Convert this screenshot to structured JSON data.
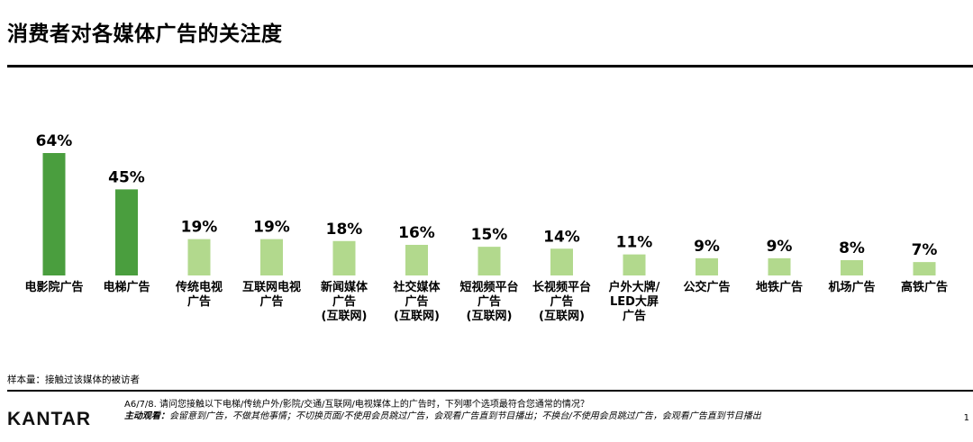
{
  "title": "消费者对各媒体广告的关注度",
  "colors": {
    "highlight": "#4a9e3e",
    "normal": "#b2d98d"
  },
  "chart_data": {
    "type": "bar",
    "categories": [
      [
        "电影院广告"
      ],
      [
        "电梯广告"
      ],
      [
        "传统电视",
        "广告"
      ],
      [
        "互联网电视",
        "广告"
      ],
      [
        "新闻媒体",
        "广告",
        "(互联网)"
      ],
      [
        "社交媒体",
        "广告",
        "(互联网)"
      ],
      [
        "短视频平台",
        "广告",
        "(互联网)"
      ],
      [
        "长视频平台",
        "广告",
        "(互联网)"
      ],
      [
        "户外大牌/",
        "LED大屏",
        "广告"
      ],
      [
        "公交广告"
      ],
      [
        "地铁广告"
      ],
      [
        "机场广告"
      ],
      [
        "高铁广告"
      ]
    ],
    "values": [
      64,
      45,
      19,
      19,
      18,
      16,
      15,
      14,
      11,
      9,
      9,
      8,
      7
    ],
    "value_labels": [
      "64%",
      "45%",
      "19%",
      "19%",
      "18%",
      "16%",
      "15%",
      "14%",
      "11%",
      "9%",
      "9%",
      "8%",
      "7%"
    ],
    "highlighted": [
      true,
      true,
      false,
      false,
      false,
      false,
      false,
      false,
      false,
      false,
      false,
      false,
      false
    ],
    "ylim": [
      0,
      70
    ],
    "grid": false
  },
  "footer": {
    "sample": "样本量：接触过该媒体的被访者",
    "logo": "KANTAR",
    "question": "A6/7/8. 请问您接触以下电梯/传统户外/影院/交通/互联网/电视媒体上的广告时，下列哪个选项最符合您通常的情况？",
    "definition_label": "主动观看：",
    "definition_text": "会留意到广告，不做其他事情；不切换页面/不使用会员跳过广告，会观看广告直到节目播出；不换台/不使用会员跳过广告，会观看广告直到节目播出",
    "page": "1"
  }
}
